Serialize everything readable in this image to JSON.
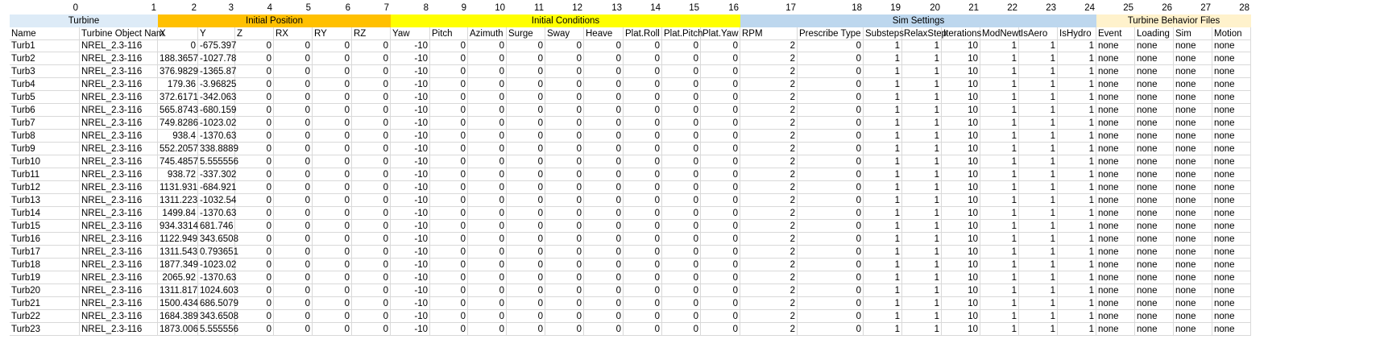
{
  "colors": {
    "turbine": "#ddebf7",
    "initial_position": "#ffc000",
    "initial_conditions": "#ffff00",
    "sim_settings": "#bdd7ee",
    "behavior_files": "#fff2cc"
  },
  "index_row": [
    "0",
    "1",
    "2",
    "3",
    "4",
    "5",
    "6",
    "7",
    "8",
    "9",
    "10",
    "11",
    "12",
    "13",
    "14",
    "15",
    "16",
    "17",
    "18",
    "19",
    "20",
    "21",
    "22",
    "23",
    "24",
    "25",
    "26",
    "27",
    "28"
  ],
  "group_headers": [
    {
      "label": "Turbine",
      "start": 0,
      "end": 1,
      "color_key": "turbine"
    },
    {
      "label": "Initial Position",
      "start": 2,
      "end": 7,
      "color_key": "initial_position"
    },
    {
      "label": "Initial Conditions",
      "start": 8,
      "end": 16,
      "color_key": "initial_conditions"
    },
    {
      "label": "Sim Settings",
      "start": 17,
      "end": 24,
      "color_key": "sim_settings"
    },
    {
      "label": "Turbine Behavior Files",
      "start": 25,
      "end": 28,
      "color_key": "behavior_files"
    }
  ],
  "column_headers": [
    "Name",
    "Turbine Object Nam",
    "X",
    "Y",
    "Z",
    "RX",
    "RY",
    "RZ",
    "Yaw",
    "Pitch",
    "Azimuth",
    "Surge",
    "Sway",
    "Heave",
    "Plat.Roll",
    "Plat.Pitch",
    "Plat.Yaw",
    "RPM",
    "Prescribe Type",
    "Substeps",
    "RelaxStep",
    "Iterations",
    "ModNewt",
    "IsAero",
    "IsHydro",
    "Event",
    "Loading",
    "Sim",
    "Motion"
  ],
  "rows": [
    [
      "Turb1",
      "NREL_2.3-116",
      "0",
      "-675.397",
      "0",
      "0",
      "0",
      "0",
      "-10",
      "0",
      "0",
      "0",
      "0",
      "0",
      "0",
      "0",
      "0",
      "2",
      "0",
      "1",
      "1",
      "10",
      "1",
      "1",
      "1",
      "none",
      "none",
      "none",
      "none"
    ],
    [
      "Turb2",
      "NREL_2.3-116",
      "188.3657",
      "-1027.78",
      "0",
      "0",
      "0",
      "0",
      "-10",
      "0",
      "0",
      "0",
      "0",
      "0",
      "0",
      "0",
      "0",
      "2",
      "0",
      "1",
      "1",
      "10",
      "1",
      "1",
      "1",
      "none",
      "none",
      "none",
      "none"
    ],
    [
      "Turb3",
      "NREL_2.3-116",
      "376.9829",
      "-1365.87",
      "0",
      "0",
      "0",
      "0",
      "-10",
      "0",
      "0",
      "0",
      "0",
      "0",
      "0",
      "0",
      "0",
      "2",
      "0",
      "1",
      "1",
      "10",
      "1",
      "1",
      "1",
      "none",
      "none",
      "none",
      "none"
    ],
    [
      "Turb4",
      "NREL_2.3-116",
      "179.36",
      "-3.96825",
      "0",
      "0",
      "0",
      "0",
      "-10",
      "0",
      "0",
      "0",
      "0",
      "0",
      "0",
      "0",
      "0",
      "2",
      "0",
      "1",
      "1",
      "10",
      "1",
      "1",
      "1",
      "none",
      "none",
      "none",
      "none"
    ],
    [
      "Turb5",
      "NREL_2.3-116",
      "372.6171",
      "-342.063",
      "0",
      "0",
      "0",
      "0",
      "-10",
      "0",
      "0",
      "0",
      "0",
      "0",
      "0",
      "0",
      "0",
      "2",
      "0",
      "1",
      "1",
      "10",
      "1",
      "1",
      "1",
      "none",
      "none",
      "none",
      "none"
    ],
    [
      "Turb6",
      "NREL_2.3-116",
      "565.8743",
      "-680.159",
      "0",
      "0",
      "0",
      "0",
      "-10",
      "0",
      "0",
      "0",
      "0",
      "0",
      "0",
      "0",
      "0",
      "2",
      "0",
      "1",
      "1",
      "10",
      "1",
      "1",
      "1",
      "none",
      "none",
      "none",
      "none"
    ],
    [
      "Turb7",
      "NREL_2.3-116",
      "749.8286",
      "-1023.02",
      "0",
      "0",
      "0",
      "0",
      "-10",
      "0",
      "0",
      "0",
      "0",
      "0",
      "0",
      "0",
      "0",
      "2",
      "0",
      "1",
      "1",
      "10",
      "1",
      "1",
      "1",
      "none",
      "none",
      "none",
      "none"
    ],
    [
      "Turb8",
      "NREL_2.3-116",
      "938.4",
      "-1370.63",
      "0",
      "0",
      "0",
      "0",
      "-10",
      "0",
      "0",
      "0",
      "0",
      "0",
      "0",
      "0",
      "0",
      "2",
      "0",
      "1",
      "1",
      "10",
      "1",
      "1",
      "1",
      "none",
      "none",
      "none",
      "none"
    ],
    [
      "Turb9",
      "NREL_2.3-116",
      "552.2057",
      "338.8889",
      "0",
      "0",
      "0",
      "0",
      "-10",
      "0",
      "0",
      "0",
      "0",
      "0",
      "0",
      "0",
      "0",
      "2",
      "0",
      "1",
      "1",
      "10",
      "1",
      "1",
      "1",
      "none",
      "none",
      "none",
      "none"
    ],
    [
      "Turb10",
      "NREL_2.3-116",
      "745.4857",
      "5.555556",
      "0",
      "0",
      "0",
      "0",
      "-10",
      "0",
      "0",
      "0",
      "0",
      "0",
      "0",
      "0",
      "0",
      "2",
      "0",
      "1",
      "1",
      "10",
      "1",
      "1",
      "1",
      "none",
      "none",
      "none",
      "none"
    ],
    [
      "Turb11",
      "NREL_2.3-116",
      "938.72",
      "-337.302",
      "0",
      "0",
      "0",
      "0",
      "-10",
      "0",
      "0",
      "0",
      "0",
      "0",
      "0",
      "0",
      "0",
      "2",
      "0",
      "1",
      "1",
      "10",
      "1",
      "1",
      "1",
      "none",
      "none",
      "none",
      "none"
    ],
    [
      "Turb12",
      "NREL_2.3-116",
      "1131.931",
      "-684.921",
      "0",
      "0",
      "0",
      "0",
      "-10",
      "0",
      "0",
      "0",
      "0",
      "0",
      "0",
      "0",
      "0",
      "2",
      "0",
      "1",
      "1",
      "10",
      "1",
      "1",
      "1",
      "none",
      "none",
      "none",
      "none"
    ],
    [
      "Turb13",
      "NREL_2.3-116",
      "1311.223",
      "-1032.54",
      "0",
      "0",
      "0",
      "0",
      "-10",
      "0",
      "0",
      "0",
      "0",
      "0",
      "0",
      "0",
      "0",
      "2",
      "0",
      "1",
      "1",
      "10",
      "1",
      "1",
      "1",
      "none",
      "none",
      "none",
      "none"
    ],
    [
      "Turb14",
      "NREL_2.3-116",
      "1499.84",
      "-1370.63",
      "0",
      "0",
      "0",
      "0",
      "-10",
      "0",
      "0",
      "0",
      "0",
      "0",
      "0",
      "0",
      "0",
      "2",
      "0",
      "1",
      "1",
      "10",
      "1",
      "1",
      "1",
      "none",
      "none",
      "none",
      "none"
    ],
    [
      "Turb15",
      "NREL_2.3-116",
      "934.3314",
      "681.746",
      "0",
      "0",
      "0",
      "0",
      "-10",
      "0",
      "0",
      "0",
      "0",
      "0",
      "0",
      "0",
      "0",
      "2",
      "0",
      "1",
      "1",
      "10",
      "1",
      "1",
      "1",
      "none",
      "none",
      "none",
      "none"
    ],
    [
      "Turb16",
      "NREL_2.3-116",
      "1122.949",
      "343.6508",
      "0",
      "0",
      "0",
      "0",
      "-10",
      "0",
      "0",
      "0",
      "0",
      "0",
      "0",
      "0",
      "0",
      "2",
      "0",
      "1",
      "1",
      "10",
      "1",
      "1",
      "1",
      "none",
      "none",
      "none",
      "none"
    ],
    [
      "Turb17",
      "NREL_2.3-116",
      "1311.543",
      "0.793651",
      "0",
      "0",
      "0",
      "0",
      "-10",
      "0",
      "0",
      "0",
      "0",
      "0",
      "0",
      "0",
      "0",
      "2",
      "0",
      "1",
      "1",
      "10",
      "1",
      "1",
      "1",
      "none",
      "none",
      "none",
      "none"
    ],
    [
      "Turb18",
      "NREL_2.3-116",
      "1877.349",
      "-1023.02",
      "0",
      "0",
      "0",
      "0",
      "-10",
      "0",
      "0",
      "0",
      "0",
      "0",
      "0",
      "0",
      "0",
      "2",
      "0",
      "1",
      "1",
      "10",
      "1",
      "1",
      "1",
      "none",
      "none",
      "none",
      "none"
    ],
    [
      "Turb19",
      "NREL_2.3-116",
      "2065.92",
      "-1370.63",
      "0",
      "0",
      "0",
      "0",
      "-10",
      "0",
      "0",
      "0",
      "0",
      "0",
      "0",
      "0",
      "0",
      "2",
      "0",
      "1",
      "1",
      "10",
      "1",
      "1",
      "1",
      "none",
      "none",
      "none",
      "none"
    ],
    [
      "Turb20",
      "NREL_2.3-116",
      "1311.817",
      "1024.603",
      "0",
      "0",
      "0",
      "0",
      "-10",
      "0",
      "0",
      "0",
      "0",
      "0",
      "0",
      "0",
      "0",
      "2",
      "0",
      "1",
      "1",
      "10",
      "1",
      "1",
      "1",
      "none",
      "none",
      "none",
      "none"
    ],
    [
      "Turb21",
      "NREL_2.3-116",
      "1500.434",
      "686.5079",
      "0",
      "0",
      "0",
      "0",
      "-10",
      "0",
      "0",
      "0",
      "0",
      "0",
      "0",
      "0",
      "0",
      "2",
      "0",
      "1",
      "1",
      "10",
      "1",
      "1",
      "1",
      "none",
      "none",
      "none",
      "none"
    ],
    [
      "Turb22",
      "NREL_2.3-116",
      "1684.389",
      "343.6508",
      "0",
      "0",
      "0",
      "0",
      "-10",
      "0",
      "0",
      "0",
      "0",
      "0",
      "0",
      "0",
      "0",
      "2",
      "0",
      "1",
      "1",
      "10",
      "1",
      "1",
      "1",
      "none",
      "none",
      "none",
      "none"
    ],
    [
      "Turb23",
      "NREL_2.3-116",
      "1873.006",
      "5.555556",
      "0",
      "0",
      "0",
      "0",
      "-10",
      "0",
      "0",
      "0",
      "0",
      "0",
      "0",
      "0",
      "0",
      "2",
      "0",
      "1",
      "1",
      "10",
      "1",
      "1",
      "1",
      "none",
      "none",
      "none",
      "none"
    ]
  ]
}
